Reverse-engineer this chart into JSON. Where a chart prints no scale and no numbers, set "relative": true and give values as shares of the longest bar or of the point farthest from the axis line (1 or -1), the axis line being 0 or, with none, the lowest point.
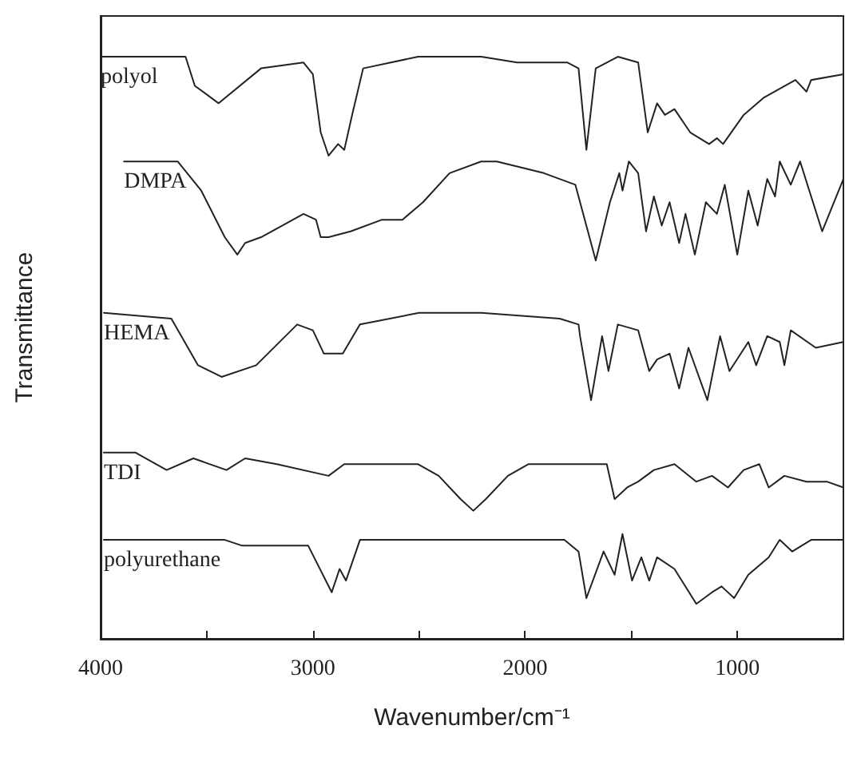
{
  "chart_data": {
    "type": "line",
    "relative": true,
    "xlabel": "Wavenumber/cm⁻¹",
    "ylabel": "Transmittance",
    "xlim": [
      4000,
      500
    ],
    "xticks": [
      4000,
      {
        "value": 3500,
        "label": null
      },
      3000,
      {
        "value": 2500,
        "label": null
      },
      2000,
      {
        "value": 1500,
        "label": null
      },
      1000
    ],
    "grid": false,
    "legend": false,
    "series": [
      {
        "name": "polyol",
        "color": "#222222",
        "x": [
          4000,
          3600,
          3556,
          3444,
          3244,
          3044,
          3000,
          2963,
          2926,
          2881,
          2852,
          2815,
          2763,
          2504,
          2207,
          2037,
          1800,
          1748,
          1711,
          1667,
          1563,
          1467,
          1422,
          1378,
          1341,
          1296,
          1222,
          1133,
          1096,
          1067,
          970,
          874,
          726,
          674,
          652,
          500
        ],
        "values": [
          1.0,
          1.0,
          0.95,
          0.92,
          0.98,
          0.99,
          0.97,
          0.87,
          0.83,
          0.85,
          0.84,
          0.9,
          0.98,
          1.0,
          1.0,
          0.99,
          0.99,
          0.98,
          0.84,
          0.98,
          1.0,
          0.99,
          0.87,
          0.92,
          0.9,
          0.91,
          0.87,
          0.85,
          0.86,
          0.85,
          0.9,
          0.93,
          0.96,
          0.94,
          0.96,
          0.97
        ]
      },
      {
        "name": "DMPA",
        "color": "#222222",
        "x": [
          3890,
          3637,
          3526,
          3415,
          3356,
          3319,
          3244,
          3044,
          2985,
          2963,
          2926,
          2822,
          2674,
          2578,
          2481,
          2356,
          2207,
          2133,
          1911,
          1763,
          1667,
          1600,
          1556,
          1541,
          1511,
          1467,
          1430,
          1393,
          1356,
          1319,
          1274,
          1244,
          1200,
          1148,
          1096,
          1059,
          1000,
          948,
          904,
          859,
          822,
          800,
          748,
          704,
          600,
          500
        ],
        "values": [
          0.82,
          0.82,
          0.77,
          0.69,
          0.66,
          0.68,
          0.69,
          0.73,
          0.72,
          0.69,
          0.69,
          0.7,
          0.72,
          0.72,
          0.75,
          0.8,
          0.82,
          0.82,
          0.8,
          0.78,
          0.65,
          0.75,
          0.8,
          0.77,
          0.82,
          0.8,
          0.7,
          0.76,
          0.71,
          0.75,
          0.68,
          0.73,
          0.66,
          0.75,
          0.73,
          0.78,
          0.66,
          0.77,
          0.71,
          0.79,
          0.76,
          0.82,
          0.78,
          0.82,
          0.7,
          0.79
        ]
      },
      {
        "name": "HEMA",
        "color": "#222222",
        "x": [
          3985,
          3667,
          3541,
          3430,
          3267,
          3074,
          3000,
          2948,
          2896,
          2859,
          2778,
          2500,
          2207,
          1837,
          1748,
          1741,
          1689,
          1637,
          1607,
          1563,
          1467,
          1415,
          1378,
          1319,
          1274,
          1230,
          1141,
          1081,
          1037,
          948,
          911,
          859,
          800,
          778,
          748,
          630,
          500
        ],
        "values": [
          0.56,
          0.55,
          0.47,
          0.45,
          0.47,
          0.54,
          0.53,
          0.49,
          0.49,
          0.49,
          0.54,
          0.56,
          0.56,
          0.55,
          0.54,
          0.52,
          0.41,
          0.52,
          0.46,
          0.54,
          0.53,
          0.46,
          0.48,
          0.49,
          0.43,
          0.5,
          0.41,
          0.52,
          0.46,
          0.51,
          0.47,
          0.52,
          0.51,
          0.47,
          0.53,
          0.5,
          0.51
        ]
      },
      {
        "name": "TDI",
        "color": "#222222",
        "x": [
          3985,
          3837,
          3689,
          3563,
          3407,
          3319,
          3170,
          2926,
          2852,
          2504,
          2407,
          2304,
          2244,
          2185,
          2081,
          1985,
          1785,
          1615,
          1578,
          1519,
          1467,
          1393,
          1296,
          1193,
          1119,
          1044,
          970,
          896,
          852,
          778,
          674,
          578,
          500
        ],
        "values": [
          0.32,
          0.32,
          0.29,
          0.31,
          0.29,
          0.31,
          0.3,
          0.28,
          0.3,
          0.3,
          0.28,
          0.24,
          0.22,
          0.24,
          0.28,
          0.3,
          0.3,
          0.3,
          0.24,
          0.26,
          0.27,
          0.29,
          0.3,
          0.27,
          0.28,
          0.26,
          0.29,
          0.3,
          0.26,
          0.28,
          0.27,
          0.27,
          0.26
        ]
      },
      {
        "name": "polyurethane",
        "color": "#222222",
        "x": [
          3985,
          3415,
          3333,
          3244,
          3022,
          2911,
          2874,
          2844,
          2778,
          2207,
          1815,
          1748,
          1711,
          1630,
          1578,
          1541,
          1496,
          1452,
          1415,
          1378,
          1296,
          1193,
          1119,
          1074,
          1015,
          948,
          852,
          800,
          741,
          652,
          500
        ],
        "values": [
          0.17,
          0.17,
          0.16,
          0.16,
          0.16,
          0.08,
          0.12,
          0.1,
          0.17,
          0.17,
          0.17,
          0.15,
          0.07,
          0.15,
          0.11,
          0.18,
          0.1,
          0.14,
          0.1,
          0.14,
          0.12,
          0.06,
          0.08,
          0.09,
          0.07,
          0.11,
          0.14,
          0.17,
          0.15,
          0.17,
          0.17
        ]
      }
    ]
  }
}
